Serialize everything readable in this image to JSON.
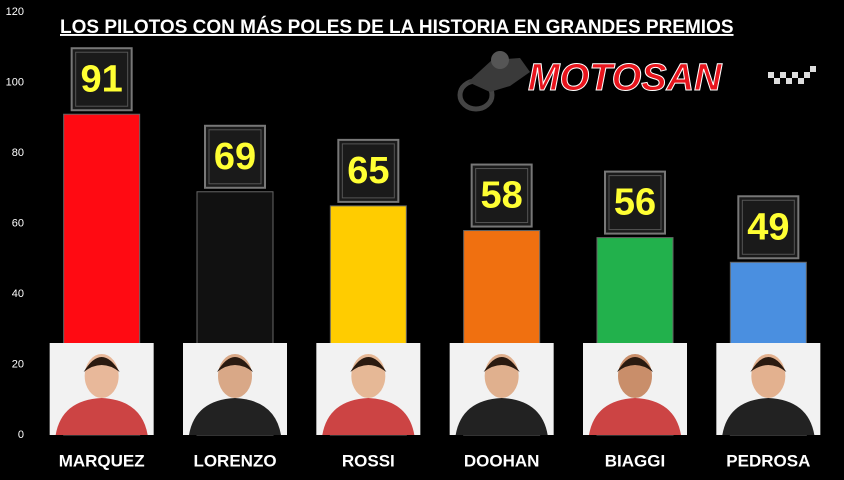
{
  "chart_data": {
    "type": "bar",
    "title": "LOS PILOTOS CON MÁS POLES DE LA HISTORIA EN GRANDES PREMIOS",
    "logo": "MOTOSAN",
    "categories": [
      "MARQUEZ",
      "LORENZO",
      "ROSSI",
      "DOOHAN",
      "BIAGGI",
      "PEDROSA"
    ],
    "values": [
      91,
      69,
      65,
      58,
      56,
      49
    ],
    "colors": [
      "#ff0a12",
      "#111111",
      "#ffcc00",
      "#f07010",
      "#22b14c",
      "#4a8fe0"
    ],
    "ylim": [
      0,
      120
    ],
    "yticks": [
      0,
      20,
      40,
      60,
      80,
      100,
      120
    ],
    "grid": false
  }
}
